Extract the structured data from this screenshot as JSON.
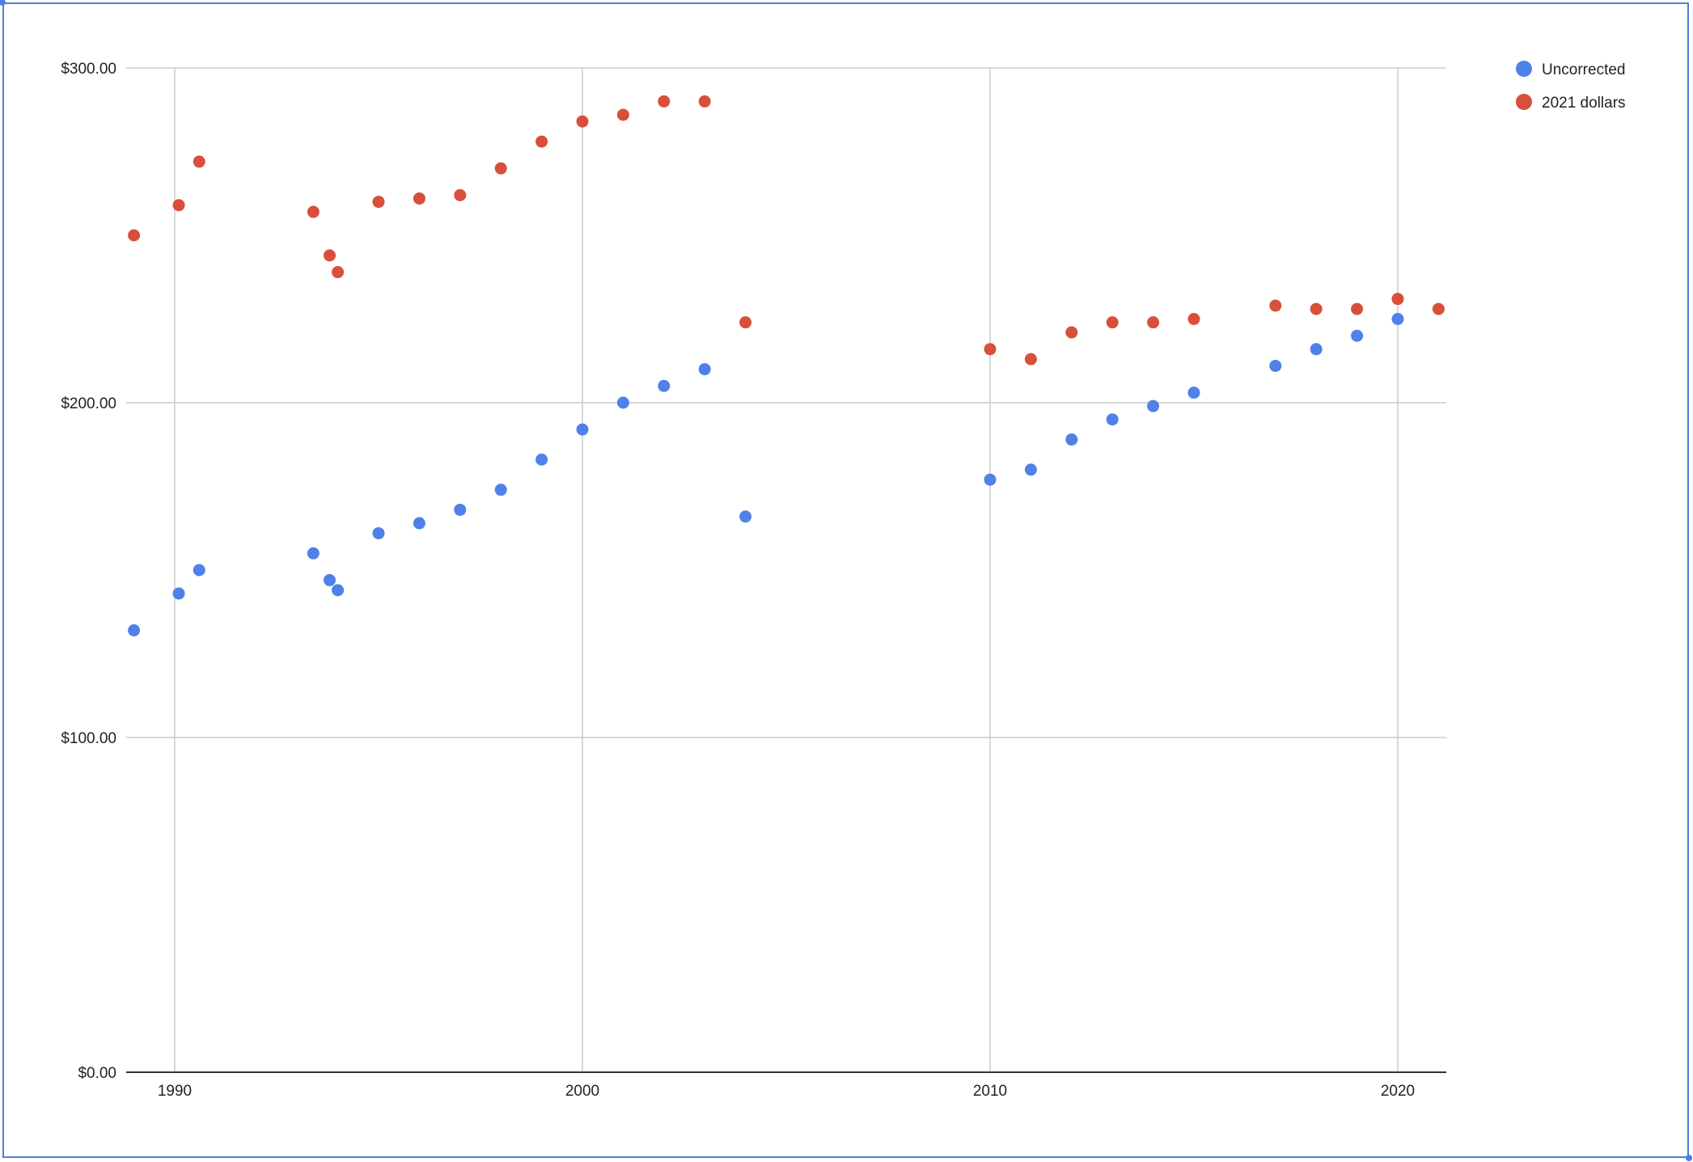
{
  "chart_data": {
    "type": "scatter",
    "title": "",
    "xlabel": "",
    "ylabel": "",
    "xlim": [
      1989,
      2021
    ],
    "ylim": [
      0,
      300
    ],
    "grid": true,
    "legend_position": "top-right",
    "x_ticks": [
      "1990",
      "2000",
      "2010",
      "2020"
    ],
    "y_ticks": [
      "$0.00",
      "$100.00",
      "$200.00",
      "$300.00"
    ],
    "series": [
      {
        "name": "Uncorrected",
        "color": "#4f81e8",
        "points": [
          [
            1989,
            132
          ],
          [
            1990.1,
            143
          ],
          [
            1990.6,
            150
          ],
          [
            1993.4,
            155
          ],
          [
            1993.8,
            147
          ],
          [
            1994.0,
            144
          ],
          [
            1995,
            161
          ],
          [
            1996,
            164
          ],
          [
            1997,
            168
          ],
          [
            1998,
            174
          ],
          [
            1999,
            183
          ],
          [
            2000,
            192
          ],
          [
            2001,
            200
          ],
          [
            2002,
            205
          ],
          [
            2003,
            210
          ],
          [
            2004,
            166
          ],
          [
            2010,
            177
          ],
          [
            2011,
            180
          ],
          [
            2012,
            189
          ],
          [
            2013,
            195
          ],
          [
            2014,
            199
          ],
          [
            2015,
            203
          ],
          [
            2017,
            211
          ],
          [
            2018,
            216
          ],
          [
            2019,
            220
          ],
          [
            2020,
            225
          ]
        ]
      },
      {
        "name": "2021 dollars",
        "color": "#d84f3c",
        "points": [
          [
            1989,
            250
          ],
          [
            1990.1,
            259
          ],
          [
            1990.6,
            272
          ],
          [
            1993.4,
            257
          ],
          [
            1993.8,
            244
          ],
          [
            1994.0,
            239
          ],
          [
            1995,
            260
          ],
          [
            1996,
            261
          ],
          [
            1997,
            262
          ],
          [
            1998,
            270
          ],
          [
            1999,
            278
          ],
          [
            2000,
            284
          ],
          [
            2001,
            286
          ],
          [
            2002,
            290
          ],
          [
            2003,
            290
          ],
          [
            2004,
            224
          ],
          [
            2010,
            216
          ],
          [
            2011,
            213
          ],
          [
            2012,
            221
          ],
          [
            2013,
            224
          ],
          [
            2014,
            224
          ],
          [
            2015,
            225
          ],
          [
            2017,
            229
          ],
          [
            2018,
            228
          ],
          [
            2019,
            228
          ],
          [
            2020,
            231
          ],
          [
            2021,
            228
          ]
        ]
      }
    ]
  },
  "legend": {
    "items": [
      {
        "label": "Uncorrected",
        "color": "#4f81e8"
      },
      {
        "label": "2021 dollars",
        "color": "#d84f3c"
      }
    ]
  }
}
